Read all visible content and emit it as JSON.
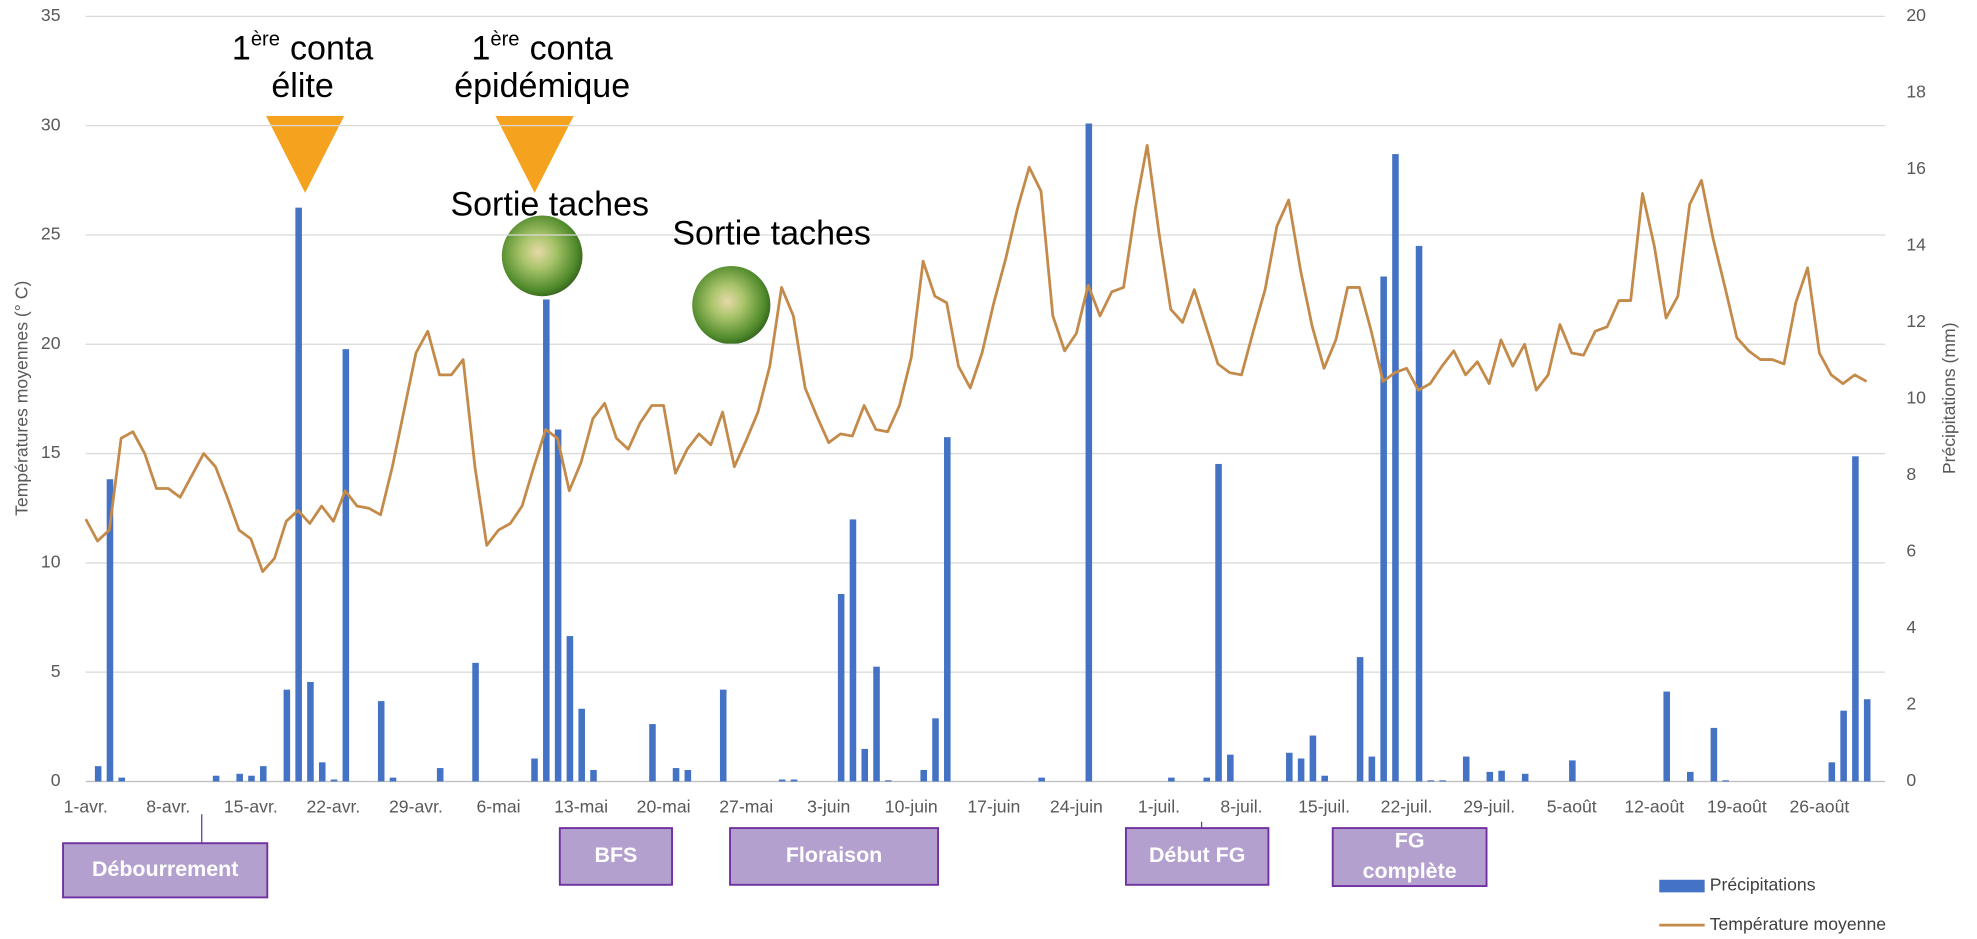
{
  "chart_data": {
    "type": "combo",
    "categories": [
      "1-avr.",
      null,
      null,
      null,
      null,
      null,
      null,
      "8-avr.",
      null,
      null,
      null,
      null,
      null,
      null,
      "15-avr.",
      null,
      null,
      null,
      null,
      null,
      null,
      "22-avr.",
      null,
      null,
      null,
      null,
      null,
      null,
      "29-avr.",
      null,
      null,
      null,
      null,
      null,
      null,
      "6-mai",
      null,
      null,
      null,
      null,
      null,
      null,
      "13-mai",
      null,
      null,
      null,
      null,
      null,
      null,
      "20-mai",
      null,
      null,
      null,
      null,
      null,
      null,
      "27-mai",
      null,
      null,
      null,
      null,
      null,
      null,
      "3-juin",
      null,
      null,
      null,
      null,
      null,
      null,
      "10-juin",
      null,
      null,
      null,
      null,
      null,
      null,
      "17-juin",
      null,
      null,
      null,
      null,
      null,
      null,
      "24-juin",
      null,
      null,
      null,
      null,
      null,
      null,
      "1-juil.",
      null,
      null,
      null,
      null,
      null,
      null,
      "8-juil.",
      null,
      null,
      null,
      null,
      null,
      null,
      "15-juil.",
      null,
      null,
      null,
      null,
      null,
      null,
      "22-juil.",
      null,
      null,
      null,
      null,
      null,
      null,
      "29-juil.",
      null,
      null,
      null,
      null,
      null,
      null,
      "5-août",
      null,
      null,
      null,
      null,
      null,
      null,
      "12-août",
      null,
      null,
      null,
      null,
      null,
      null,
      "19-août",
      null,
      null,
      null,
      null,
      null,
      null,
      "26-août",
      null,
      null,
      null,
      null
    ],
    "series": [
      {
        "name": "Précipitations",
        "type": "bar",
        "axis": "y2",
        "color": "#4472c4",
        "values": [
          0,
          0.4,
          7.9,
          0.1,
          0,
          0,
          0,
          0,
          0,
          0,
          0,
          0.15,
          0,
          0.2,
          0.15,
          0.4,
          0,
          2.4,
          15.0,
          2.6,
          0.5,
          0.05,
          11.3,
          0,
          0,
          2.1,
          0.1,
          0,
          0,
          0,
          0.35,
          0,
          0,
          3.1,
          0,
          0,
          0,
          0,
          0.6,
          12.6,
          9.2,
          3.8,
          1.9,
          0.3,
          0,
          0,
          0,
          0,
          1.5,
          0,
          0.35,
          0.3,
          0,
          0,
          2.4,
          0,
          0,
          0,
          0,
          0.05,
          0.05,
          0,
          0,
          0,
          4.9,
          6.85,
          0.85,
          3.0,
          0.03,
          0,
          0,
          0.3,
          1.65,
          9.0,
          0,
          0,
          0,
          0,
          0,
          0,
          0,
          0.1,
          0,
          0,
          0,
          17.2,
          0,
          0,
          0,
          0,
          0,
          0,
          0.1,
          0,
          0,
          0.1,
          8.3,
          0.7,
          0,
          0,
          0,
          0,
          0.75,
          0.6,
          1.2,
          0.15,
          0,
          0,
          3.25,
          0.65,
          13.2,
          16.4,
          0,
          14.0,
          0.03,
          0.03,
          0,
          0.65,
          0,
          0.25,
          0.28,
          0,
          0.2,
          0,
          0,
          0,
          0.55,
          0,
          0,
          0,
          0,
          0,
          0,
          0,
          2.35,
          0,
          0.25,
          0,
          1.4,
          0.03,
          0,
          0,
          0,
          0,
          0,
          0,
          0,
          0,
          0.5,
          1.85,
          8.5,
          2.15
        ]
      },
      {
        "name": "Température moyenne",
        "type": "line",
        "color": "#c48a4a",
        "values": [
          12.0,
          11.0,
          11.5,
          15.7,
          16.0,
          15.0,
          13.4,
          13.4,
          13.0,
          14.0,
          15.0,
          14.4,
          13.0,
          11.5,
          11.1,
          9.6,
          10.2,
          11.9,
          12.4,
          11.8,
          12.6,
          11.9,
          13.3,
          12.6,
          12.5,
          12.2,
          14.4,
          17.0,
          19.6,
          20.6,
          18.6,
          18.6,
          19.3,
          14.4,
          10.8,
          11.5,
          11.8,
          12.6,
          14.4,
          16.1,
          15.7,
          13.3,
          14.6,
          16.6,
          17.3,
          15.7,
          15.2,
          16.4,
          17.2,
          17.2,
          14.1,
          15.2,
          15.9,
          15.4,
          16.9,
          14.4,
          15.6,
          16.9,
          19.0,
          22.6,
          21.3,
          18.0,
          16.7,
          15.5,
          15.9,
          15.8,
          17.2,
          16.1,
          16.0,
          17.2,
          19.4,
          23.8,
          22.2,
          21.9,
          19.0,
          18.0,
          19.6,
          21.9,
          23.9,
          26.2,
          28.1,
          27.0,
          21.3,
          19.7,
          20.5,
          22.7,
          21.3,
          22.4,
          22.6,
          26.2,
          29.1,
          25.1,
          21.6,
          21.0,
          22.5,
          20.8,
          19.1,
          18.7,
          18.6,
          20.6,
          22.5,
          25.4,
          26.6,
          23.4,
          20.8,
          18.9,
          20.2,
          22.6,
          22.6,
          20.6,
          18.3,
          18.7,
          18.9,
          17.9,
          18.2,
          19.0,
          19.7,
          18.6,
          19.2,
          18.2,
          20.2,
          19.0,
          20.0,
          17.9,
          18.6,
          20.9,
          19.6,
          19.5,
          20.6,
          20.8,
          22.0,
          22.0,
          26.9,
          24.5,
          21.2,
          22.2,
          26.4,
          27.5,
          24.8,
          22.6,
          20.3,
          19.7,
          19.3,
          19.3,
          19.1,
          21.9,
          23.5,
          19.6,
          18.6,
          18.2,
          18.6,
          18.3
        ]
      }
    ],
    "ylabel": "Températures moyennes (° C)",
    "y2label": "Précipitations (mm)",
    "ylim": [
      0,
      35
    ],
    "yticks": [
      0,
      5,
      10,
      15,
      20,
      25,
      30,
      35
    ],
    "y2lim": [
      0,
      20
    ],
    "y2ticks": [
      0,
      2,
      4,
      6,
      8,
      10,
      12,
      14,
      16,
      18,
      20
    ],
    "grid": true,
    "legend": "bottom-right",
    "annotations": [
      {
        "ordinal": "1",
        "suffix": "ère",
        "line1": "conta",
        "line2": "élite"
      },
      {
        "ordinal": "1",
        "suffix": "ère",
        "line1": "conta",
        "line2": "épidémique"
      },
      {
        "text": "Sortie taches"
      },
      {
        "text": "Sortie taches"
      }
    ],
    "stages": [
      {
        "lines": [
          "Débourrement"
        ]
      },
      {
        "lines": [
          "BFS"
        ]
      },
      {
        "lines": [
          "Floraison"
        ]
      },
      {
        "lines": [
          "Début FG"
        ]
      },
      {
        "lines": [
          "FG",
          "complète"
        ]
      }
    ]
  }
}
